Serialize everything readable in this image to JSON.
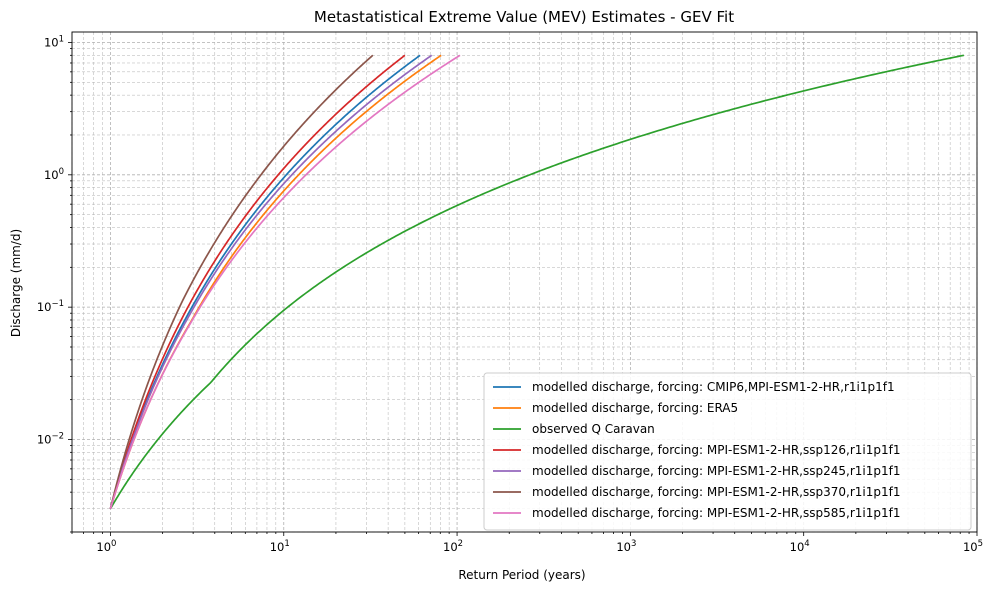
{
  "chart_data": {
    "type": "line",
    "title": "Metastatistical Extreme Value (MEV) Estimates - GEV Fit",
    "xlabel": "Return Period (years)",
    "ylabel": "Discharge (mm/d)",
    "xscale": "log",
    "yscale": "log",
    "xlim": [
      0.6,
      100000
    ],
    "ylim": [
      0.002,
      12
    ],
    "grid": true,
    "legend_position": "lower-right",
    "x_tick_labels": [
      {
        "value": 1,
        "base": "10",
        "exp": "0"
      },
      {
        "value": 10,
        "base": "10",
        "exp": "1"
      },
      {
        "value": 100,
        "base": "10",
        "exp": "2"
      },
      {
        "value": 1000,
        "base": "10",
        "exp": "3"
      },
      {
        "value": 10000,
        "base": "10",
        "exp": "4"
      },
      {
        "value": 100000,
        "base": "10",
        "exp": "5"
      }
    ],
    "y_tick_labels": [
      {
        "value": 0.01,
        "base": "10",
        "exp": "−2"
      },
      {
        "value": 0.1,
        "base": "10",
        "exp": "−1"
      },
      {
        "value": 1,
        "base": "10",
        "exp": "0"
      },
      {
        "value": 10,
        "base": "10",
        "exp": "1"
      }
    ],
    "series": [
      {
        "name": "modelled discharge, forcing: CMIP6,MPI-ESM1-2-HR,r1i1p1f1",
        "color": "#1f77b4",
        "q_min": 0.003,
        "q_max": 8.0,
        "T_max": 60,
        "x_shift": 0.02
      },
      {
        "name": "modelled discharge, forcing: ERA5",
        "color": "#ff7f0e",
        "q_min": 0.003,
        "q_max": 8.0,
        "T_max": 75,
        "x_shift": 0.08
      },
      {
        "name": "observed Q Caravan",
        "color": "#2ca02c",
        "q_min": 0.003,
        "q_max": 8.0,
        "T_max": 60000,
        "x_shift": 0.4
      },
      {
        "name": "modelled discharge, forcing: MPI-ESM1-2-HR,ssp126,r1i1p1f1",
        "color": "#d62728",
        "q_min": 0.003,
        "q_max": 8.0,
        "T_max": 50,
        "x_shift": 0.0
      },
      {
        "name": "modelled discharge, forcing: MPI-ESM1-2-HR,ssp245,r1i1p1f1",
        "color": "#9467bd",
        "q_min": 0.003,
        "q_max": 8.0,
        "T_max": 70,
        "x_shift": 0.02
      },
      {
        "name": "modelled discharge, forcing: MPI-ESM1-2-HR,ssp370,r1i1p1f1",
        "color": "#8c564b",
        "q_min": 0.003,
        "q_max": 8.0,
        "T_max": 34,
        "x_shift": -0.04
      },
      {
        "name": "modelled discharge, forcing: MPI-ESM1-2-HR,ssp585,r1i1p1f1",
        "color": "#e377c2",
        "q_min": 0.003,
        "q_max": 8.0,
        "T_max": 100,
        "x_shift": 0.04
      }
    ]
  }
}
